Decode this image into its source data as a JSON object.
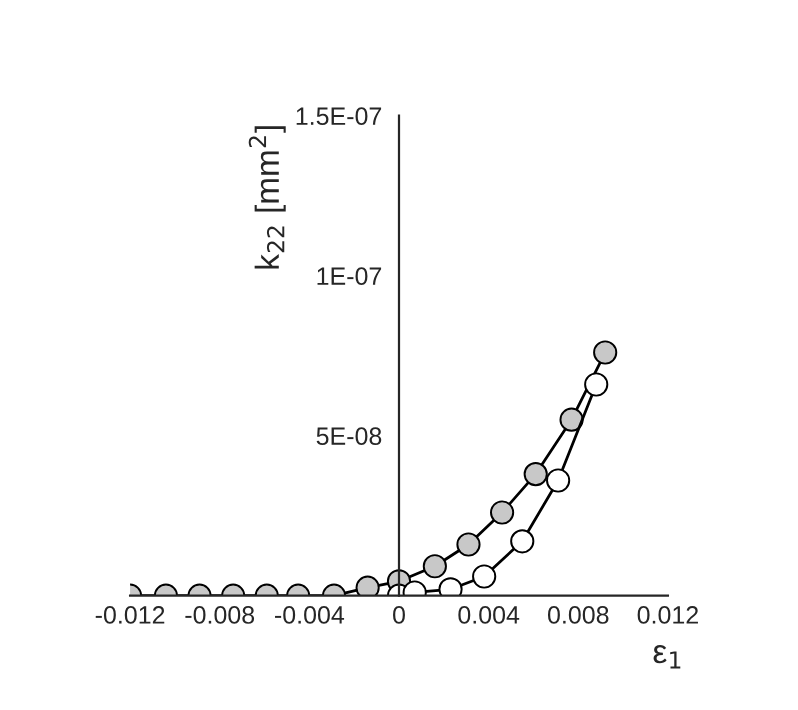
{
  "chart_data": {
    "type": "line",
    "xlabel": "ε$_{1}$",
    "ylabel": "k$_{22}$ [mm$^{2}$]",
    "xlim": [
      -0.012,
      0.012
    ],
    "xticks": [
      -0.012,
      -0.008,
      -0.004,
      0,
      0.004,
      0.008,
      0.012
    ],
    "ylim": [
      0,
      1.5e-07
    ],
    "yticks": [
      {
        "value": 0,
        "label": null
      },
      {
        "value": 5e-08,
        "label": "5E-08"
      },
      {
        "value": 1e-07,
        "label": "1E-07"
      },
      {
        "value": 1.5e-07,
        "label": "1.5E-07"
      }
    ],
    "marker": "circle",
    "line_style": "solid",
    "grid": false,
    "legend": false,
    "series": [
      {
        "color": "#c8c8c8",
        "x": [
          -0.012,
          -0.0104,
          -0.0089,
          -0.0074,
          -0.0059,
          -0.0045,
          -0.0029,
          -0.0014,
          0,
          0.0016,
          0.0031,
          0.0046,
          0.0061,
          0.0077,
          0.0092
        ],
        "values": [
          0,
          0,
          0,
          0,
          0,
          0,
          0,
          2.5e-09,
          4.5e-09,
          9.2e-09,
          1.6e-08,
          2.6e-08,
          3.8e-08,
          5.5e-08,
          7.6e-08
        ]
      },
      {
        "color": "#ffffff",
        "x": [
          0,
          0.0007,
          0.0023,
          0.0038,
          0.0055,
          0.0071,
          0.0088
        ],
        "values": [
          0,
          1e-09,
          2e-09,
          6e-09,
          1.7e-08,
          3.6e-08,
          6.6e-08
        ]
      }
    ]
  }
}
